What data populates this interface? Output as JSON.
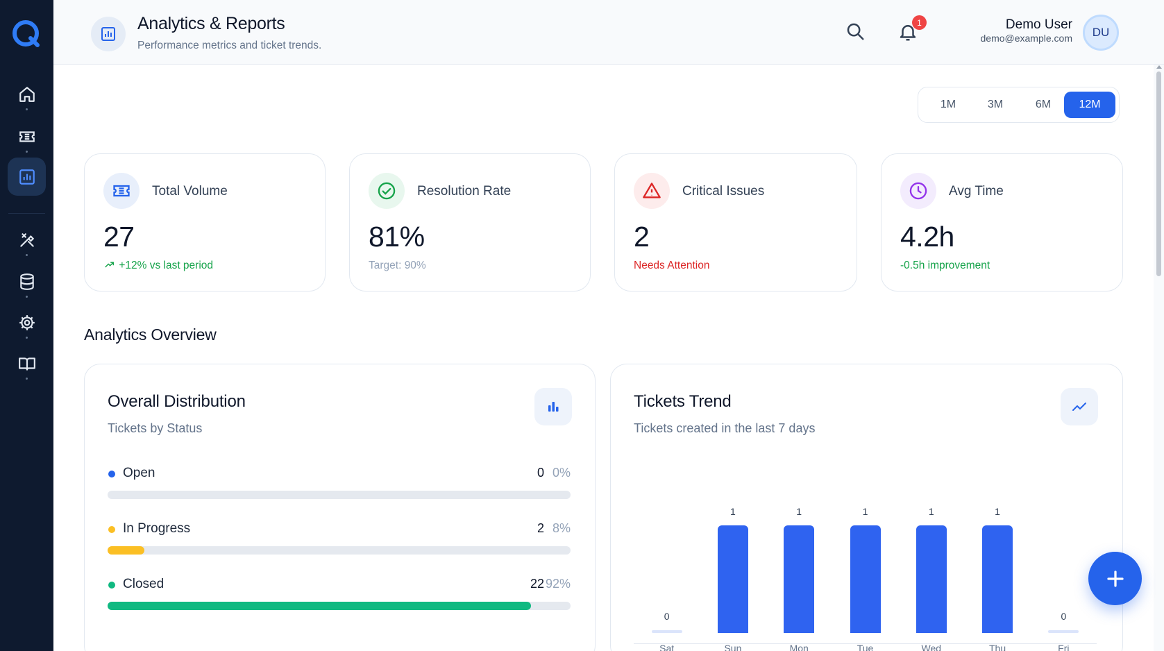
{
  "header": {
    "title": "Analytics & Reports",
    "subtitle": "Performance metrics and ticket trends.",
    "notification_count": "1",
    "user_name": "Demo User",
    "user_email": "demo@example.com",
    "avatar_initials": "DU"
  },
  "sidebar": {
    "items": [
      {
        "icon": "home-icon"
      },
      {
        "icon": "ticket-icon"
      },
      {
        "icon": "analytics-icon",
        "active": true
      },
      {
        "icon": "tools-icon"
      },
      {
        "icon": "database-icon"
      },
      {
        "icon": "settings-icon"
      },
      {
        "icon": "book-icon"
      }
    ]
  },
  "range": {
    "options": [
      "1M",
      "3M",
      "6M",
      "12M"
    ],
    "selected": "12M"
  },
  "stats": [
    {
      "label": "Total Volume",
      "value": "27",
      "note": "+12% vs last period",
      "note_color": "#16a34a",
      "icon": "ticket-icon"
    },
    {
      "label": "Resolution Rate",
      "value": "81%",
      "note": "Target: 90%",
      "note_color": "#94a3b8",
      "icon": "check-circle-icon"
    },
    {
      "label": "Critical Issues",
      "value": "2",
      "note": "Needs Attention",
      "note_color": "#dc2626",
      "icon": "warning-icon"
    },
    {
      "label": "Avg Time",
      "value": "4.2h",
      "note": "-0.5h improvement",
      "note_color": "#16a34a",
      "icon": "clock-icon"
    }
  ],
  "section_title": "Analytics Overview",
  "distribution": {
    "title": "Overall Distribution",
    "subtitle": "Tickets by Status",
    "rows": [
      {
        "label": "Open",
        "count": "0",
        "pct": "0%",
        "fraction": 0,
        "color": "#2563eb"
      },
      {
        "label": "In Progress",
        "count": "2",
        "pct": "8%",
        "fraction": 0.08,
        "color": "#fbbf24"
      },
      {
        "label": "Closed",
        "count": "22",
        "pct": "92%",
        "fraction": 0.914,
        "color": "#10b981"
      }
    ]
  },
  "trend": {
    "title": "Tickets Trend",
    "subtitle": "Tickets created in the last 7 days"
  },
  "chart_data": {
    "type": "bar",
    "categories": [
      "Sat",
      "Sun",
      "Mon",
      "Tue",
      "Wed",
      "Thu",
      "Fri"
    ],
    "values": [
      0,
      1,
      1,
      1,
      1,
      1,
      0
    ],
    "ylim": [
      0,
      1
    ],
    "color": "#2f63f0"
  },
  "colors": {
    "accent": "#2563eb",
    "sidebar": "#0e1a2f"
  }
}
